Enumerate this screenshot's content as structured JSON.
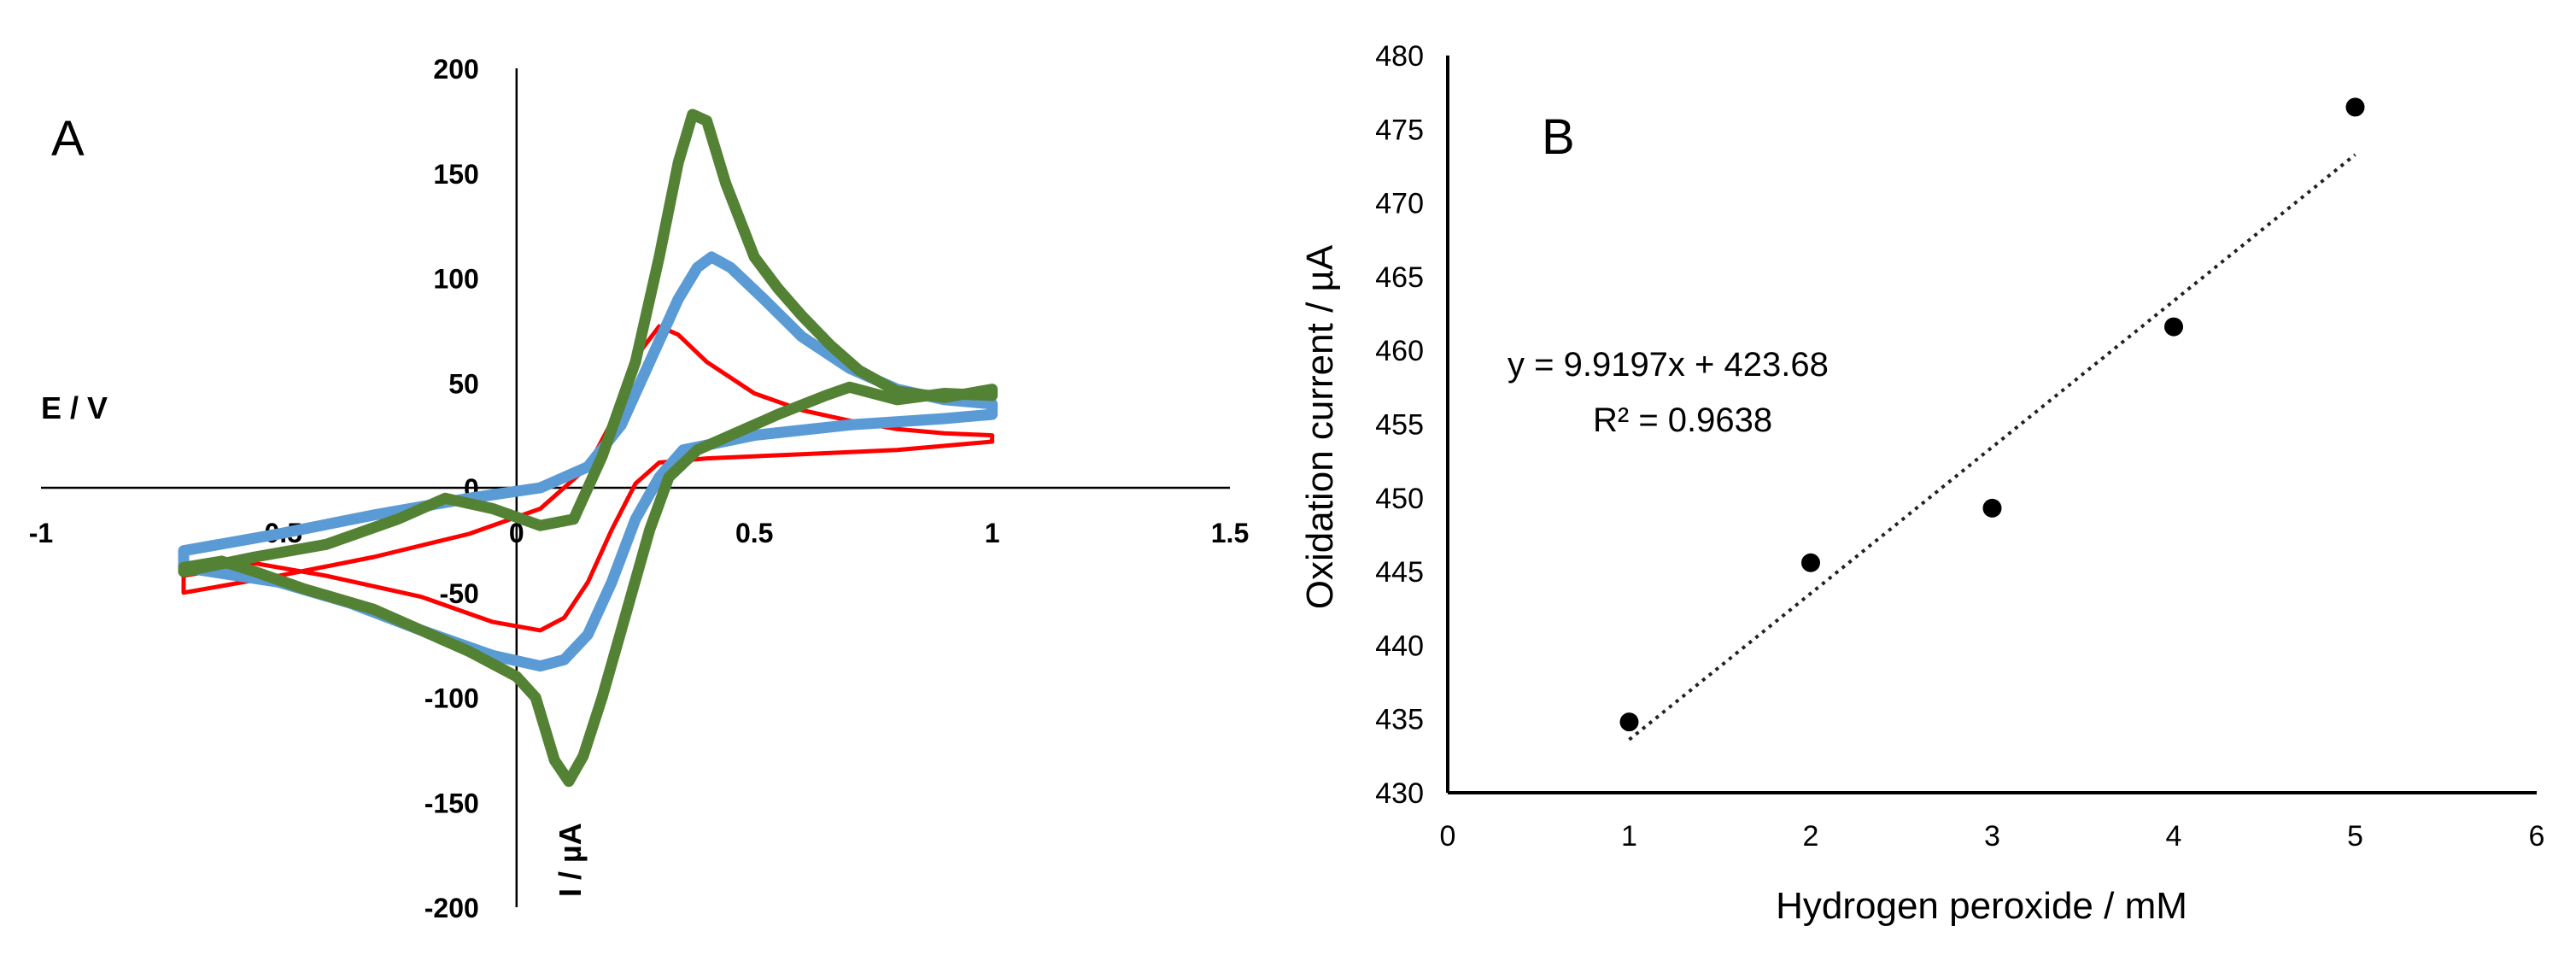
{
  "chart_data": [
    {
      "type": "line",
      "panel_label": "A",
      "title": "",
      "xlabel": "E / V",
      "ylabel": "I / µA",
      "xlim": [
        -1,
        1.5
      ],
      "ylim": [
        -200,
        200
      ],
      "x_ticks": [
        -1,
        -0.5,
        0,
        0.5,
        1,
        1.5
      ],
      "x_tick_labels": [
        "-1",
        "-0.5",
        "0",
        "0.5",
        "1",
        "1.5"
      ],
      "y_ticks": [
        200,
        150,
        100,
        50,
        0,
        -50,
        -100,
        -150,
        -200
      ],
      "y_tick_labels": [
        "200",
        "150",
        "100",
        "50",
        "0",
        "-50",
        "-100",
        "-150",
        "-200"
      ],
      "grid": false,
      "legend": "none",
      "series": [
        {
          "name": "red",
          "color": "#ff0000",
          "stroke": "thin",
          "points": [
            [
              -0.7,
              -50
            ],
            [
              -0.5,
              -42
            ],
            [
              -0.3,
              -33
            ],
            [
              -0.1,
              -22
            ],
            [
              0.05,
              -10
            ],
            [
              0.15,
              10
            ],
            [
              0.22,
              40
            ],
            [
              0.26,
              65
            ],
            [
              0.3,
              77
            ],
            [
              0.34,
              73
            ],
            [
              0.4,
              60
            ],
            [
              0.5,
              45
            ],
            [
              0.6,
              37
            ],
            [
              0.7,
              32
            ],
            [
              0.8,
              28
            ],
            [
              0.9,
              26
            ],
            [
              1.0,
              25
            ],
            [
              1.0,
              22
            ],
            [
              0.9,
              20
            ],
            [
              0.8,
              18
            ],
            [
              0.6,
              16
            ],
            [
              0.4,
              14
            ],
            [
              0.3,
              12
            ],
            [
              0.25,
              2
            ],
            [
              0.2,
              -20
            ],
            [
              0.15,
              -45
            ],
            [
              0.1,
              -62
            ],
            [
              0.05,
              -68
            ],
            [
              -0.05,
              -64
            ],
            [
              -0.2,
              -52
            ],
            [
              -0.4,
              -42
            ],
            [
              -0.55,
              -36
            ],
            [
              -0.7,
              -42
            ]
          ]
        },
        {
          "name": "blue",
          "color": "#5b9bd5",
          "stroke": "thick",
          "points": [
            [
              -0.7,
              -30
            ],
            [
              -0.5,
              -22
            ],
            [
              -0.3,
              -13
            ],
            [
              -0.1,
              -5
            ],
            [
              0.05,
              0
            ],
            [
              0.15,
              10
            ],
            [
              0.22,
              30
            ],
            [
              0.28,
              60
            ],
            [
              0.34,
              90
            ],
            [
              0.38,
              105
            ],
            [
              0.41,
              110
            ],
            [
              0.45,
              105
            ],
            [
              0.52,
              90
            ],
            [
              0.6,
              72
            ],
            [
              0.7,
              57
            ],
            [
              0.8,
              47
            ],
            [
              0.9,
              42
            ],
            [
              1.0,
              40
            ],
            [
              1.0,
              35
            ],
            [
              0.9,
              33
            ],
            [
              0.7,
              30
            ],
            [
              0.5,
              25
            ],
            [
              0.35,
              18
            ],
            [
              0.3,
              5
            ],
            [
              0.25,
              -15
            ],
            [
              0.2,
              -45
            ],
            [
              0.15,
              -70
            ],
            [
              0.1,
              -82
            ],
            [
              0.05,
              -85
            ],
            [
              -0.05,
              -80
            ],
            [
              -0.2,
              -68
            ],
            [
              -0.35,
              -55
            ],
            [
              -0.5,
              -45
            ],
            [
              -0.7,
              -38
            ]
          ]
        },
        {
          "name": "green",
          "color": "#548235",
          "stroke": "thick",
          "points": [
            [
              -0.7,
              -40
            ],
            [
              -0.55,
              -33
            ],
            [
              -0.4,
              -27
            ],
            [
              -0.25,
              -15
            ],
            [
              -0.15,
              -5
            ],
            [
              -0.05,
              -10
            ],
            [
              0.05,
              -18
            ],
            [
              0.12,
              -15
            ],
            [
              0.18,
              15
            ],
            [
              0.25,
              60
            ],
            [
              0.3,
              110
            ],
            [
              0.34,
              155
            ],
            [
              0.37,
              178
            ],
            [
              0.4,
              175
            ],
            [
              0.44,
              145
            ],
            [
              0.5,
              110
            ],
            [
              0.55,
              95
            ],
            [
              0.6,
              82
            ],
            [
              0.66,
              68
            ],
            [
              0.72,
              56
            ],
            [
              0.8,
              46
            ],
            [
              0.9,
              43
            ],
            [
              1.0,
              47
            ],
            [
              1.0,
              44
            ],
            [
              0.9,
              45
            ],
            [
              0.8,
              42
            ],
            [
              0.7,
              48
            ],
            [
              0.65,
              44
            ],
            [
              0.55,
              35
            ],
            [
              0.45,
              25
            ],
            [
              0.38,
              18
            ],
            [
              0.32,
              5
            ],
            [
              0.28,
              -20
            ],
            [
              0.23,
              -60
            ],
            [
              0.18,
              -100
            ],
            [
              0.14,
              -128
            ],
            [
              0.11,
              -140
            ],
            [
              0.08,
              -130
            ],
            [
              0.04,
              -100
            ],
            [
              0.0,
              -90
            ],
            [
              -0.1,
              -78
            ],
            [
              -0.2,
              -68
            ],
            [
              -0.3,
              -58
            ],
            [
              -0.45,
              -48
            ],
            [
              -0.55,
              -40
            ],
            [
              -0.62,
              -35
            ],
            [
              -0.7,
              -38
            ]
          ]
        }
      ]
    },
    {
      "type": "scatter",
      "panel_label": "B",
      "title": "",
      "xlabel": "Hydrogen peroxide / mM",
      "ylabel": "Oxidation current / µA",
      "xlim": [
        0,
        6
      ],
      "ylim": [
        430,
        480
      ],
      "x_ticks": [
        0,
        1,
        2,
        3,
        4,
        5,
        6
      ],
      "x_tick_labels": [
        "0",
        "1",
        "2",
        "3",
        "4",
        "5",
        "6"
      ],
      "y_ticks": [
        430,
        435,
        440,
        445,
        450,
        455,
        460,
        465,
        470,
        475,
        480
      ],
      "y_tick_labels": [
        "430",
        "435",
        "440",
        "445",
        "450",
        "455",
        "460",
        "465",
        "470",
        "475",
        "480"
      ],
      "grid": false,
      "legend": "none",
      "x": [
        1,
        2,
        3,
        4,
        5
      ],
      "y": [
        434.8,
        445.6,
        449.3,
        461.6,
        476.5
      ],
      "trendline": {
        "slope": 9.9197,
        "intercept": 423.68,
        "x_range": [
          1,
          5
        ],
        "style": "dotted"
      },
      "equation_text": "y = 9.9197x + 423.68",
      "r2_text": "R² = 0.9638"
    }
  ]
}
